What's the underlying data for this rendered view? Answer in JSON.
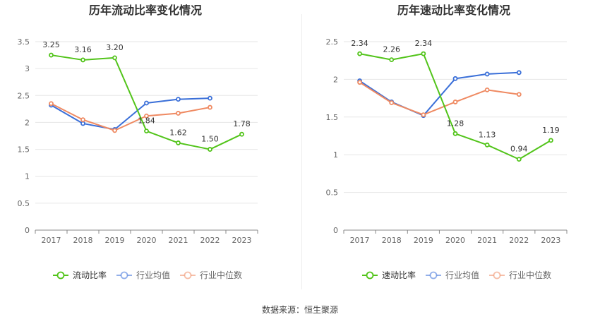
{
  "colors": {
    "main": "#52c41a",
    "avg": "#3a6fd8",
    "median": "#ef8a62",
    "grid": "#e6e6e6",
    "axis": "#666666",
    "text": "#333333"
  },
  "source": "数据来源：恒生聚源",
  "chart_data": [
    {
      "type": "line",
      "title": "历年流动比率变化情况",
      "categories": [
        "2017",
        "2018",
        "2019",
        "2020",
        "2021",
        "2022",
        "2023"
      ],
      "ylim": [
        0,
        3.5
      ],
      "yticks": [
        "0",
        "0.5",
        "1",
        "1.5",
        "2",
        "2.5",
        "3",
        "3.5"
      ],
      "grid": true,
      "legend_position": "bottom",
      "series": [
        {
          "name": "流动比率",
          "role": "main",
          "values": [
            3.25,
            3.16,
            3.2,
            1.84,
            1.62,
            1.5,
            1.78
          ],
          "labels": [
            "3.25",
            "3.16",
            "3.20",
            "1.84",
            "1.62",
            "1.50",
            "1.78"
          ]
        },
        {
          "name": "行业均值",
          "role": "avg",
          "values": [
            2.32,
            1.98,
            1.87,
            2.36,
            2.43,
            2.45,
            null
          ]
        },
        {
          "name": "行业中位数",
          "role": "median",
          "values": [
            2.35,
            2.05,
            1.85,
            2.12,
            2.17,
            2.28,
            null
          ]
        }
      ]
    },
    {
      "type": "line",
      "title": "历年速动比率变化情况",
      "categories": [
        "2017",
        "2018",
        "2019",
        "2020",
        "2021",
        "2022",
        "2023"
      ],
      "ylim": [
        0,
        2.5
      ],
      "yticks": [
        "0",
        "0.5",
        "1",
        "1.5",
        "2",
        "2.5"
      ],
      "grid": true,
      "legend_position": "bottom",
      "series": [
        {
          "name": "速动比率",
          "role": "main",
          "values": [
            2.34,
            2.26,
            2.34,
            1.28,
            1.13,
            0.94,
            1.19
          ],
          "labels": [
            "2.34",
            "2.26",
            "2.34",
            "1.28",
            "1.13",
            "0.94",
            "1.19"
          ]
        },
        {
          "name": "行业均值",
          "role": "avg",
          "values": [
            1.98,
            1.7,
            1.52,
            2.01,
            2.07,
            2.09,
            null
          ]
        },
        {
          "name": "行业中位数",
          "role": "median",
          "values": [
            1.96,
            1.69,
            1.53,
            1.7,
            1.86,
            1.8,
            null
          ]
        }
      ]
    }
  ]
}
